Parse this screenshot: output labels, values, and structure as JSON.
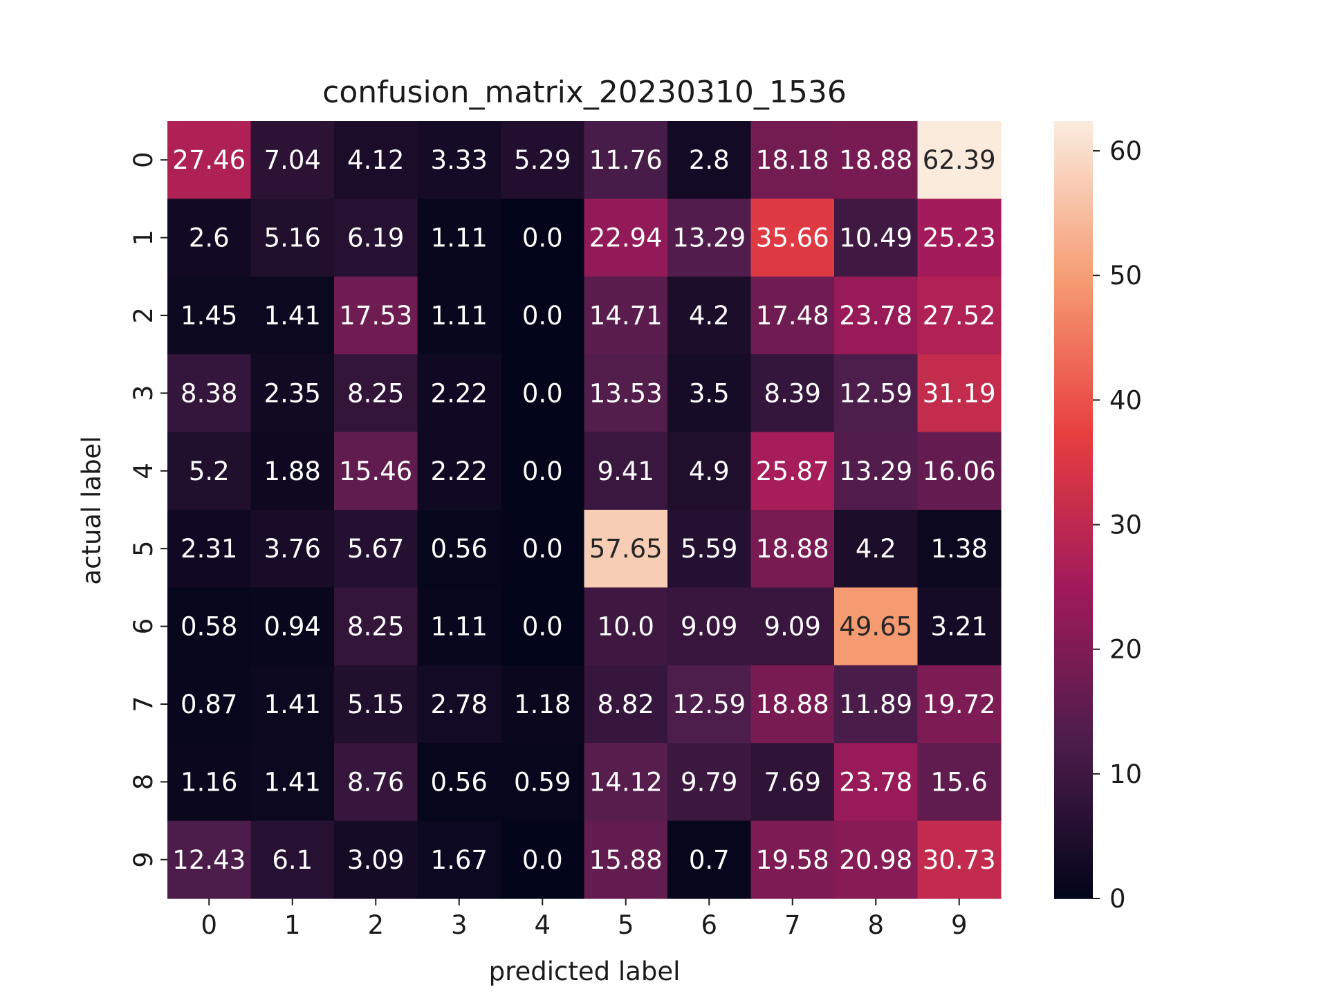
{
  "chart_data": {
    "type": "heatmap",
    "title": "confusion_matrix_20230310_1536",
    "xlabel": "predicted label",
    "ylabel": "actual label",
    "x_categories": [
      "0",
      "1",
      "2",
      "3",
      "4",
      "5",
      "6",
      "7",
      "8",
      "9"
    ],
    "y_categories": [
      "0",
      "1",
      "2",
      "3",
      "4",
      "5",
      "6",
      "7",
      "8",
      "9"
    ],
    "values": [
      [
        27.46,
        7.04,
        4.12,
        3.33,
        5.29,
        11.76,
        2.8,
        18.18,
        18.88,
        62.39
      ],
      [
        2.6,
        5.16,
        6.19,
        1.11,
        0.0,
        22.94,
        13.29,
        35.66,
        10.49,
        25.23
      ],
      [
        1.45,
        1.41,
        17.53,
        1.11,
        0.0,
        14.71,
        4.2,
        17.48,
        23.78,
        27.52
      ],
      [
        8.38,
        2.35,
        8.25,
        2.22,
        0.0,
        13.53,
        3.5,
        8.39,
        12.59,
        31.19
      ],
      [
        5.2,
        1.88,
        15.46,
        2.22,
        0.0,
        9.41,
        4.9,
        25.87,
        13.29,
        16.06
      ],
      [
        2.31,
        3.76,
        5.67,
        0.56,
        0.0,
        57.65,
        5.59,
        18.88,
        4.2,
        1.38
      ],
      [
        0.58,
        0.94,
        8.25,
        1.11,
        0.0,
        10.0,
        9.09,
        9.09,
        49.65,
        3.21
      ],
      [
        0.87,
        1.41,
        5.15,
        2.78,
        1.18,
        8.82,
        12.59,
        18.88,
        11.89,
        19.72
      ],
      [
        1.16,
        1.41,
        8.76,
        0.56,
        0.59,
        14.12,
        9.79,
        7.69,
        23.78,
        15.6
      ],
      [
        12.43,
        6.1,
        3.09,
        1.67,
        0.0,
        15.88,
        0.7,
        19.58,
        20.98,
        30.73
      ]
    ],
    "value_labels": [
      [
        "27.46",
        "7.04",
        "4.12",
        "3.33",
        "5.29",
        "11.76",
        "2.8",
        "18.18",
        "18.88",
        "62.39"
      ],
      [
        "2.6",
        "5.16",
        "6.19",
        "1.11",
        "0.0",
        "22.94",
        "13.29",
        "35.66",
        "10.49",
        "25.23"
      ],
      [
        "1.45",
        "1.41",
        "17.53",
        "1.11",
        "0.0",
        "14.71",
        "4.2",
        "17.48",
        "23.78",
        "27.52"
      ],
      [
        "8.38",
        "2.35",
        "8.25",
        "2.22",
        "0.0",
        "13.53",
        "3.5",
        "8.39",
        "12.59",
        "31.19"
      ],
      [
        "5.2",
        "1.88",
        "15.46",
        "2.22",
        "0.0",
        "9.41",
        "4.9",
        "25.87",
        "13.29",
        "16.06"
      ],
      [
        "2.31",
        "3.76",
        "5.67",
        "0.56",
        "0.0",
        "57.65",
        "5.59",
        "18.88",
        "4.2",
        "1.38"
      ],
      [
        "0.58",
        "0.94",
        "8.25",
        "1.11",
        "0.0",
        "10.0",
        "9.09",
        "9.09",
        "49.65",
        "3.21"
      ],
      [
        "0.87",
        "1.41",
        "5.15",
        "2.78",
        "1.18",
        "8.82",
        "12.59",
        "18.88",
        "11.89",
        "19.72"
      ],
      [
        "1.16",
        "1.41",
        "8.76",
        "0.56",
        "0.59",
        "14.12",
        "9.79",
        "7.69",
        "23.78",
        "15.6"
      ],
      [
        "12.43",
        "6.1",
        "3.09",
        "1.67",
        "0.0",
        "15.88",
        "0.7",
        "19.58",
        "20.98",
        "30.73"
      ]
    ],
    "colormap": "rocket",
    "colormap_stops": [
      "#03051a",
      "#4c1d4b",
      "#a11a5b",
      "#e83f3f",
      "#f69c73",
      "#faebdd"
    ],
    "vmin": 0,
    "vmax": 62.39,
    "colorbar_ticks": [
      0,
      10,
      20,
      30,
      40,
      50,
      60
    ],
    "colorbar_tick_labels": [
      "0",
      "10",
      "20",
      "30",
      "40",
      "50",
      "60"
    ],
    "grid": false
  }
}
